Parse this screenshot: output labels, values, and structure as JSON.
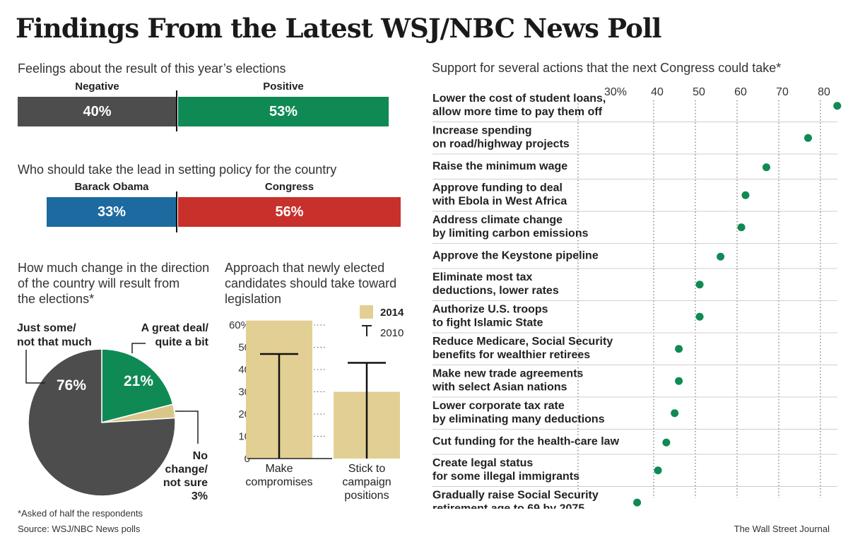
{
  "title": "Findings From the Latest WSJ/NBC News Poll",
  "chart_data": [
    {
      "type": "bar",
      "title": "Feelings about the result of this year’s elections",
      "series": [
        {
          "name": "Negative",
          "value": 40,
          "label": "40%",
          "color": "#4d4d4d"
        },
        {
          "name": "Positive",
          "value": 53,
          "label": "53%",
          "color": "#0f8a55"
        }
      ]
    },
    {
      "type": "bar",
      "title": "Who should take the lead in setting policy for the country",
      "series": [
        {
          "name": "Barack Obama",
          "value": 33,
          "label": "33%",
          "color": "#1c6aa0"
        },
        {
          "name": "Congress",
          "value": 56,
          "label": "56%",
          "color": "#c8302c"
        }
      ]
    },
    {
      "type": "pie",
      "title": "How much change in the direction of the country will result from the elections*",
      "title_lines": [
        "How much change in the direction",
        "of the country will result from",
        "the elections*"
      ],
      "slices": [
        {
          "name": "A great deal/ quite a bit",
          "name_lines": [
            "A great deal/",
            "quite a bit"
          ],
          "value": 21,
          "label": "21%",
          "color": "#0f8a55"
        },
        {
          "name": "No change/ not sure",
          "name_lines": [
            "No",
            "change/",
            "not sure",
            "3%"
          ],
          "value": 3,
          "label": "3%",
          "color": "#d9c78a"
        },
        {
          "name": "Just some/ not that much",
          "name_lines": [
            "Just some/",
            "not that much"
          ],
          "value": 76,
          "label": "76%",
          "color": "#4d4d4d"
        }
      ]
    },
    {
      "type": "bar",
      "title": "Approach that newly elected candidates should take toward legislation",
      "title_lines": [
        "Approach that newly elected",
        "candidates should take toward",
        "legislation"
      ],
      "categories": [
        "Make compromises",
        "Stick to campaign positions"
      ],
      "category_lines": [
        [
          "Make",
          "compromises"
        ],
        [
          "Stick to",
          "campaign",
          "positions"
        ]
      ],
      "series": [
        {
          "name": "2014",
          "values": [
            62,
            30
          ],
          "color": "#e2cf93"
        },
        {
          "name": "2010",
          "values": [
            47,
            43
          ],
          "marker": "T"
        }
      ],
      "yticks": [
        "60%",
        "50",
        "40",
        "30",
        "20",
        "10",
        "0"
      ],
      "ylim": [
        0,
        60
      ]
    },
    {
      "type": "scatter",
      "title": "Support for several actions that the next Congress could take*",
      "xticks": [
        "30%",
        "40",
        "50",
        "60",
        "70",
        "80"
      ],
      "xlim": [
        30,
        80
      ],
      "color": "#0f8a55",
      "items": [
        {
          "lines": [
            "Lower the cost of student loans,",
            "allow more time to pay them off"
          ],
          "value": 82
        },
        {
          "lines": [
            "Increase spending",
            "on road/highway projects"
          ],
          "value": 75
        },
        {
          "lines": [
            "Raise the minimum wage"
          ],
          "value": 65
        },
        {
          "lines": [
            "Approve funding to deal",
            "with Ebola in West Africa"
          ],
          "value": 60
        },
        {
          "lines": [
            "Address climate change",
            "by limiting carbon emissions"
          ],
          "value": 59
        },
        {
          "lines": [
            "Approve the Keystone pipeline"
          ],
          "value": 54
        },
        {
          "lines": [
            "Eliminate most tax",
            "deductions, lower rates"
          ],
          "value": 49
        },
        {
          "lines": [
            "Authorize U.S. troops",
            "to fight Islamic State"
          ],
          "value": 49
        },
        {
          "lines": [
            "Reduce Medicare, Social Security",
            "benefits for wealthier retirees"
          ],
          "value": 44
        },
        {
          "lines": [
            "Make new trade agreements",
            "with select Asian nations"
          ],
          "value": 44
        },
        {
          "lines": [
            "Lower corporate tax rate",
            "by eliminating many deductions"
          ],
          "value": 43
        },
        {
          "lines": [
            "Cut funding for the health-care law"
          ],
          "value": 41
        },
        {
          "lines": [
            "Create legal status",
            "for some illegal immigrants"
          ],
          "value": 39
        },
        {
          "lines": [
            "Gradually raise Social Security",
            "retirement age to 69 by 2075"
          ],
          "value": 34
        }
      ]
    }
  ],
  "footnote": "*Asked of half the respondents",
  "source": "Source: WSJ/NBC News polls",
  "credit": "The Wall Street Journal"
}
